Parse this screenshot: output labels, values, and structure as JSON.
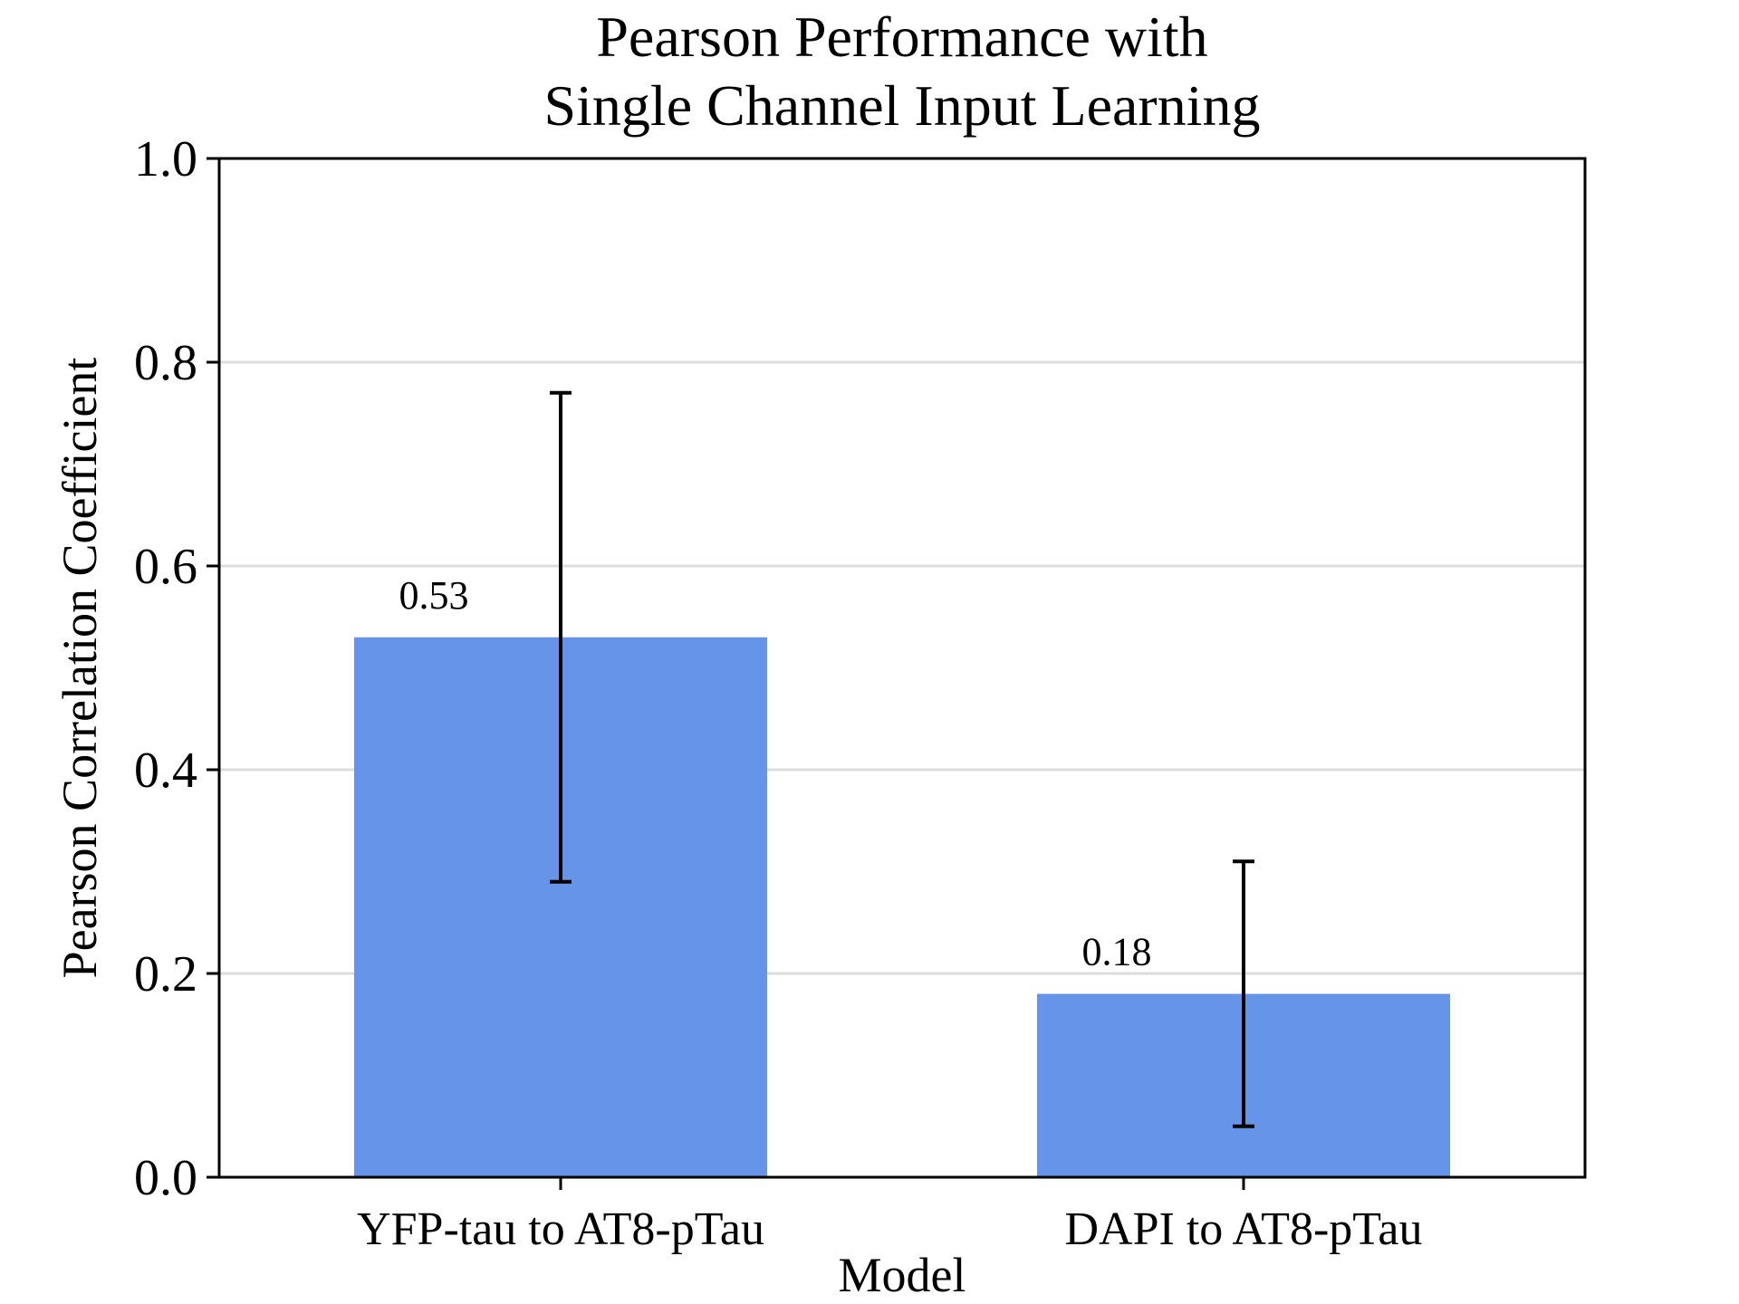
{
  "chart_data": {
    "type": "bar",
    "title": "Pearson Performance with Single Channel Input Learning",
    "title_lines": [
      "Pearson Performance with",
      "Single Channel Input Learning"
    ],
    "xlabel": "Model",
    "ylabel": "Pearson Correlation Coefficient",
    "categories": [
      "YFP-tau to AT8-pTau",
      "DAPI to AT8-pTau"
    ],
    "values": [
      0.53,
      0.18
    ],
    "value_labels": [
      "0.53",
      "0.18"
    ],
    "error_bars": [
      {
        "low": 0.29,
        "high": 0.77
      },
      {
        "low": 0.05,
        "high": 0.31
      }
    ],
    "ylim": [
      0.0,
      1.0
    ],
    "yticks": [
      0.0,
      0.2,
      0.4,
      0.6,
      0.8,
      1.0
    ],
    "ytick_labels": [
      "0.0",
      "0.2",
      "0.4",
      "0.6",
      "0.8",
      "1.0"
    ],
    "grid": "horizontal",
    "legend": "none",
    "colors": {
      "bar": "#6694e9",
      "grid": "#dddddd",
      "axis": "#000000",
      "error": "#000000"
    }
  }
}
